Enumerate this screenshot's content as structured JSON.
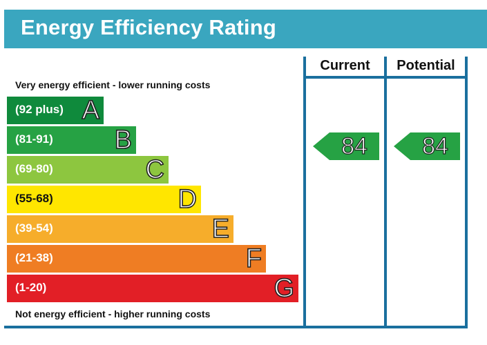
{
  "header": {
    "title": "Energy Efficiency Rating"
  },
  "columns": {
    "current": "Current",
    "potential": "Potential"
  },
  "notes": {
    "top": "Very energy efficient - lower running costs",
    "bottom": "Not energy efficient - higher running costs"
  },
  "chart_data": {
    "type": "bar",
    "categories": [
      "A",
      "B",
      "C",
      "D",
      "E",
      "F",
      "G"
    ],
    "ranges": [
      "(92 plus)",
      "(81-91)",
      "(69-80)",
      "(55-68)",
      "(39-54)",
      "(21-38)",
      "(1-20)"
    ],
    "colors": [
      "#0f8a3c",
      "#26a244",
      "#8dc63f",
      "#ffe600",
      "#f6ad2b",
      "#ef7d23",
      "#e21f26"
    ],
    "current": 84,
    "potential": 84,
    "rating_color": "#26a244"
  }
}
